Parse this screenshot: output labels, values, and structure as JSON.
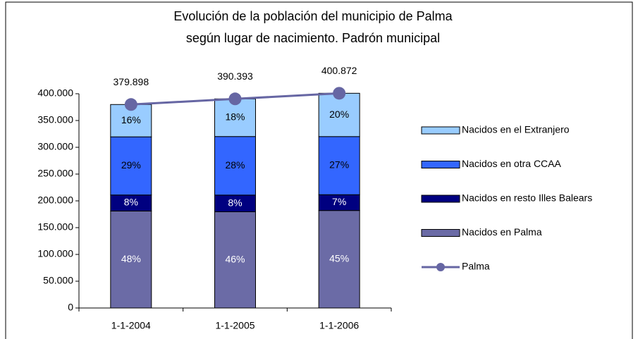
{
  "chart_data": {
    "type": "bar",
    "title": [
      "Evolución de la población del municipio de Palma",
      "según lugar de nacimiento. Padrón municipal"
    ],
    "categories": [
      "1-1-2004",
      "1-1-2005",
      "1-1-2006"
    ],
    "stacked": true,
    "series": [
      {
        "name": "Nacidos en Palma",
        "color": "#6b6ba6",
        "values": [
          181000,
          179600,
          182000
        ],
        "value_labels": [
          "48%",
          "46%",
          "45%"
        ]
      },
      {
        "name": "Nacidos en resto Illes Balears",
        "color": "#000080",
        "values": [
          30000,
          31200,
          29500
        ],
        "value_labels": [
          "8%",
          "8%",
          "7%"
        ]
      },
      {
        "name": "Nacidos en otra CCAA",
        "color": "#3366ff",
        "values": [
          108500,
          109300,
          108500
        ],
        "value_labels": [
          "29%",
          "28%",
          "27%"
        ]
      },
      {
        "name": "Nacidos en el Extranjero",
        "color": "#99ccff",
        "values": [
          60398,
          70293,
          80872
        ],
        "value_labels": [
          "16%",
          "18%",
          "20%"
        ]
      },
      {
        "name": "Palma",
        "type": "line",
        "color": "#6666a3",
        "values": [
          379898,
          390393,
          400872
        ],
        "value_labels": [
          "379.898",
          "390.393",
          "400.872"
        ]
      }
    ],
    "ylim": [
      0,
      400000
    ],
    "yticks": [
      0,
      {
        "value": 50000,
        "label": "50.000"
      },
      {
        "value": 100000,
        "label": "100.000"
      },
      {
        "value": 150000,
        "label": "150.000"
      },
      {
        "value": 200000,
        "label": "200.000"
      },
      {
        "value": 250000,
        "label": "250.000"
      },
      {
        "value": 300000,
        "label": "300.000"
      },
      {
        "value": 350000,
        "label": "350.000"
      },
      {
        "value": 400000,
        "label": "400.000"
      }
    ],
    "grid": false,
    "legend": "right"
  }
}
